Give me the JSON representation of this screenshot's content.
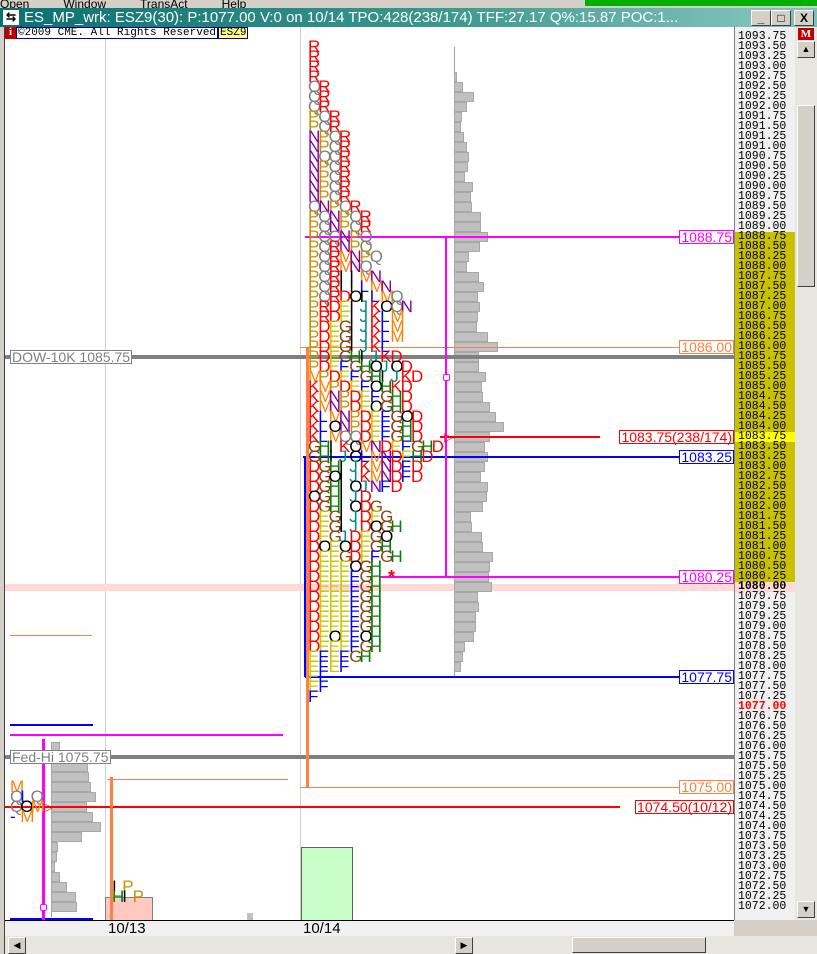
{
  "menu": [
    "Open",
    "Window",
    "TransAct",
    "Help"
  ],
  "title": "ES_MP_wrk: ESZ9(30): P:1077.00 V:0 on 10/14 TPO:428(238/174)  TFF:27.17 Q%:15.87 POC:1...",
  "window_buttons": {
    "minimize": "_",
    "maximize": "□",
    "close": "X"
  },
  "info": {
    "icon": "i",
    "copyright": "©2009 CME. All Rights Reserved",
    "symbol": "ESZ9"
  },
  "axis_icon": "M",
  "colors": {
    "value_area": "#c8c000",
    "poc": "#ffff00",
    "last_price": "#ff0000",
    "magenta": "#ff00ff",
    "blue": "#0000ff",
    "orange": "#ff8040",
    "gray_level": "#808080"
  },
  "chart_data": {
    "type": "market-profile",
    "price_axis": {
      "max": 1093.75,
      "min": 1072.0,
      "step": 0.25,
      "value_area": [
        1080.25,
        1088.75
      ],
      "poc": 1083.75,
      "last": 1077.0,
      "highlight": 1080.0
    },
    "tick_labels": [
      "1093.75",
      "1093.50",
      "1093.25",
      "1093.00",
      "1092.75",
      "1092.50",
      "1092.25",
      "1092.00",
      "1091.75",
      "1091.50",
      "1091.25",
      "1091.00",
      "1090.75",
      "1090.50",
      "1090.25",
      "1090.00",
      "1089.75",
      "1089.50",
      "1089.25",
      "1089.00",
      "1088.75",
      "1088.50",
      "1088.25",
      "1088.00",
      "1087.75",
      "1087.50",
      "1087.25",
      "1087.00",
      "1086.75",
      "1086.50",
      "1086.25",
      "1086.00",
      "1085.75",
      "1085.50",
      "1085.25",
      "1085.00",
      "1084.75",
      "1084.50",
      "1084.25",
      "1084.00",
      "1083.75",
      "1083.50",
      "1083.25",
      "1083.00",
      "1082.75",
      "1082.50",
      "1082.25",
      "1082.00",
      "1081.75",
      "1081.50",
      "1081.25",
      "1081.00",
      "1080.75",
      "1080.50",
      "1080.25",
      "1080.00",
      "1079.75",
      "1079.50",
      "1079.25",
      "1079.00",
      "1078.75",
      "1078.50",
      "1078.25",
      "1078.00",
      "1077.75",
      "1077.50",
      "1077.25",
      "1077.00",
      "1076.75",
      "1076.50",
      "1076.25",
      "1076.00",
      "1075.75",
      "1075.50",
      "1075.25",
      "1075.00",
      "1074.75",
      "1074.50",
      "1074.25",
      "1074.00",
      "1073.75",
      "1073.50",
      "1073.25",
      "1073.00",
      "1072.75",
      "1072.50",
      "1072.25",
      "1072.00"
    ],
    "dates": [
      "10/13",
      "10/14"
    ],
    "letter_colors": {
      "B": "#ff0000",
      "D": "#ff0000",
      "E": "#c8c800",
      "F": "#0000ff",
      "G": "#8b4513",
      "H": "#008000",
      "I": "#000000",
      "J": "#008b8b",
      "K": "#ff0000",
      "L": "#0000ff",
      "M": "#ff8000",
      "N": "#8000a0",
      "O": "#000000",
      "P": "#c89000",
      "Q": "#808080",
      "R": "#ff0000",
      "-": "#0000ff"
    },
    "profile_10_14": [
      [
        1093.5,
        "R"
      ],
      [
        1093.25,
        "R"
      ],
      [
        1093.0,
        "R"
      ],
      [
        1092.75,
        "R"
      ],
      [
        1092.5,
        "QR"
      ],
      [
        1092.25,
        "QR"
      ],
      [
        1092.0,
        "QR"
      ],
      [
        1091.75,
        "PQR"
      ],
      [
        1091.5,
        "PQR"
      ],
      [
        1091.25,
        "NPQR"
      ],
      [
        1091.0,
        "NPQR"
      ],
      [
        1090.75,
        "NQQR"
      ],
      [
        1090.5,
        "NPQR"
      ],
      [
        1090.25,
        "NPQR"
      ],
      [
        1090.0,
        "NPQR"
      ],
      [
        1089.75,
        "NPQR"
      ],
      [
        1089.5,
        "QNPQR"
      ],
      [
        1089.25,
        "PQNPQR"
      ],
      [
        1089.0,
        "PQNPQR"
      ],
      [
        1088.75,
        "PQQNPQ"
      ],
      [
        1088.5,
        "PQRNPQ"
      ],
      [
        1088.25,
        "PQRMNPQ"
      ],
      [
        1088.0,
        "PQRMNQ"
      ],
      [
        1087.75,
        "PQRIIMN"
      ],
      [
        1087.5,
        "PQRIILMN"
      ],
      [
        1087.25,
        "PQRDOILMQ"
      ],
      [
        1087.0,
        "PRDEIJKOQN"
      ],
      [
        1086.75,
        "PRDEIJKLM"
      ],
      [
        1086.5,
        "PDEGIJKLM"
      ],
      [
        1086.25,
        "PDEGIJKLM"
      ],
      [
        1086.0,
        "PDEGIJKL"
      ],
      [
        1085.75,
        "PDEGHIJKD"
      ],
      [
        1085.5,
        "PDEFGHOJOD"
      ],
      [
        1085.25,
        "MPDEFGHIJKD"
      ],
      [
        1085.0,
        "KMPDEFOHKD"
      ],
      [
        1084.75,
        "KMNPDEFGHD"
      ],
      [
        1084.5,
        "KMNPDEOGHD"
      ],
      [
        1084.25,
        "KLMNPDEFGOD"
      ],
      [
        1084.0,
        "KLONPDEFGHD"
      ],
      [
        1083.75,
        "KLMQQDEFGHD"
      ],
      [
        1083.5,
        "GHIKOMNDEFGHD"
      ],
      [
        1083.25,
        "GHIJOLMNDEHD"
      ],
      [
        1083.0,
        "DGHIJKMNDFD"
      ],
      [
        1082.75,
        "DGOIJKMNDFD"
      ],
      [
        1082.5,
        "DGHIOJNFD"
      ],
      [
        1082.25,
        "OGHIJD"
      ],
      [
        1082.0,
        "DGHIODG"
      ],
      [
        1081.75,
        "DEGIJDEG"
      ],
      [
        1081.5,
        "DEGIJDOGH"
      ],
      [
        1081.25,
        "DEGJDEGO"
      ],
      [
        1081.0,
        "DOEODEGH"
      ],
      [
        1080.75,
        "DEEGDEFGH"
      ],
      [
        1080.5,
        "DEEEOGH"
      ],
      [
        1080.25,
        "DEEEFGH"
      ],
      [
        1080.0,
        "DEEEFGH"
      ],
      [
        1079.75,
        "DEEEFGH"
      ],
      [
        1079.5,
        "DEEEFGH"
      ],
      [
        1079.25,
        "DEEEFGH"
      ],
      [
        1079.0,
        "DEEEFGH"
      ],
      [
        1078.75,
        "DEOEFOH"
      ],
      [
        1078.5,
        "DEEEFGH"
      ],
      [
        1078.25,
        "EFEFGH"
      ],
      [
        1078.0,
        "EFEF"
      ],
      [
        1077.75,
        "EF"
      ],
      [
        1077.5,
        "EF"
      ],
      [
        1077.25,
        "F"
      ]
    ],
    "profile_10_12_tail": [
      [
        1075.0,
        "M"
      ],
      [
        1074.75,
        "QLQ"
      ],
      [
        1074.5,
        "QOM"
      ],
      [
        1074.25,
        "-M"
      ]
    ],
    "profile_10_13_tail": [
      [
        1072.5,
        "IP"
      ],
      [
        1072.25,
        "HIP"
      ]
    ],
    "volume_10_14": [
      [
        1092.75,
        2
      ],
      [
        1092.5,
        8
      ],
      [
        1092.25,
        19
      ],
      [
        1092.0,
        12
      ],
      [
        1091.75,
        7
      ],
      [
        1091.5,
        6
      ],
      [
        1091.25,
        9
      ],
      [
        1091.0,
        12
      ],
      [
        1090.75,
        14
      ],
      [
        1090.5,
        13
      ],
      [
        1090.25,
        10
      ],
      [
        1090.0,
        18
      ],
      [
        1089.75,
        16
      ],
      [
        1089.5,
        17
      ],
      [
        1089.25,
        26
      ],
      [
        1089.0,
        26
      ],
      [
        1088.75,
        33
      ],
      [
        1088.5,
        25
      ],
      [
        1088.25,
        14
      ],
      [
        1088.0,
        12
      ],
      [
        1087.75,
        24
      ],
      [
        1087.5,
        29
      ],
      [
        1087.25,
        23
      ],
      [
        1087.0,
        25
      ],
      [
        1086.75,
        23
      ],
      [
        1086.5,
        22
      ],
      [
        1086.25,
        33
      ],
      [
        1086.0,
        43
      ],
      [
        1085.75,
        24
      ],
      [
        1085.5,
        24
      ],
      [
        1085.25,
        31
      ],
      [
        1085.0,
        27
      ],
      [
        1084.75,
        28
      ],
      [
        1084.5,
        35
      ],
      [
        1084.25,
        41
      ],
      [
        1084.0,
        49
      ],
      [
        1083.75,
        35
      ],
      [
        1083.5,
        30
      ],
      [
        1083.25,
        33
      ],
      [
        1083.0,
        30
      ],
      [
        1082.75,
        26
      ],
      [
        1082.5,
        33
      ],
      [
        1082.25,
        32
      ],
      [
        1082.0,
        28
      ],
      [
        1081.75,
        16
      ],
      [
        1081.5,
        17
      ],
      [
        1081.25,
        27
      ],
      [
        1081.0,
        28
      ],
      [
        1080.75,
        38
      ],
      [
        1080.5,
        35
      ],
      [
        1080.25,
        34
      ],
      [
        1080.0,
        37
      ],
      [
        1079.75,
        23
      ],
      [
        1079.5,
        24
      ],
      [
        1079.25,
        21
      ],
      [
        1079.0,
        21
      ],
      [
        1078.75,
        19
      ],
      [
        1078.5,
        10
      ],
      [
        1078.25,
        8
      ],
      [
        1078.0,
        6
      ]
    ],
    "volume_10_12": [
      [
        1076.0,
        8
      ],
      [
        1075.5,
        36
      ],
      [
        1075.25,
        37
      ],
      [
        1075.0,
        39
      ],
      [
        1074.75,
        44
      ],
      [
        1074.5,
        35
      ],
      [
        1074.25,
        41
      ],
      [
        1074.0,
        49
      ],
      [
        1073.75,
        30
      ],
      [
        1073.5,
        6
      ],
      [
        1073.25,
        5
      ],
      [
        1073.0,
        3
      ],
      [
        1072.75,
        8
      ],
      [
        1072.5,
        15
      ],
      [
        1072.25,
        24
      ],
      [
        1072.0,
        25
      ]
    ],
    "levels": [
      {
        "price": 1088.75,
        "label": "1088.75",
        "color": "#ff00ff"
      },
      {
        "price": 1086.0,
        "label": "1086.00",
        "color": "#ff8040"
      },
      {
        "price": 1085.75,
        "label": "DOW-10K 1085.75",
        "color": "#808080"
      },
      {
        "price": 1083.75,
        "label": "1083.75(238/174)",
        "color": "#ff0000"
      },
      {
        "price": 1083.25,
        "label": "1083.25",
        "color": "#0000ff"
      },
      {
        "price": 1080.25,
        "label": "1080.25",
        "color": "#ff00ff"
      },
      {
        "price": 1077.75,
        "label": "1077.75",
        "color": "#0000ff"
      },
      {
        "price": 1075.75,
        "label": "Fed-Hi 1075.75",
        "color": "#808080"
      },
      {
        "price": 1075.0,
        "label": "1075.00",
        "color": "#ff8040"
      },
      {
        "price": 1074.5,
        "label": "1074.50(10/12)",
        "color": "#ff0000"
      }
    ]
  }
}
